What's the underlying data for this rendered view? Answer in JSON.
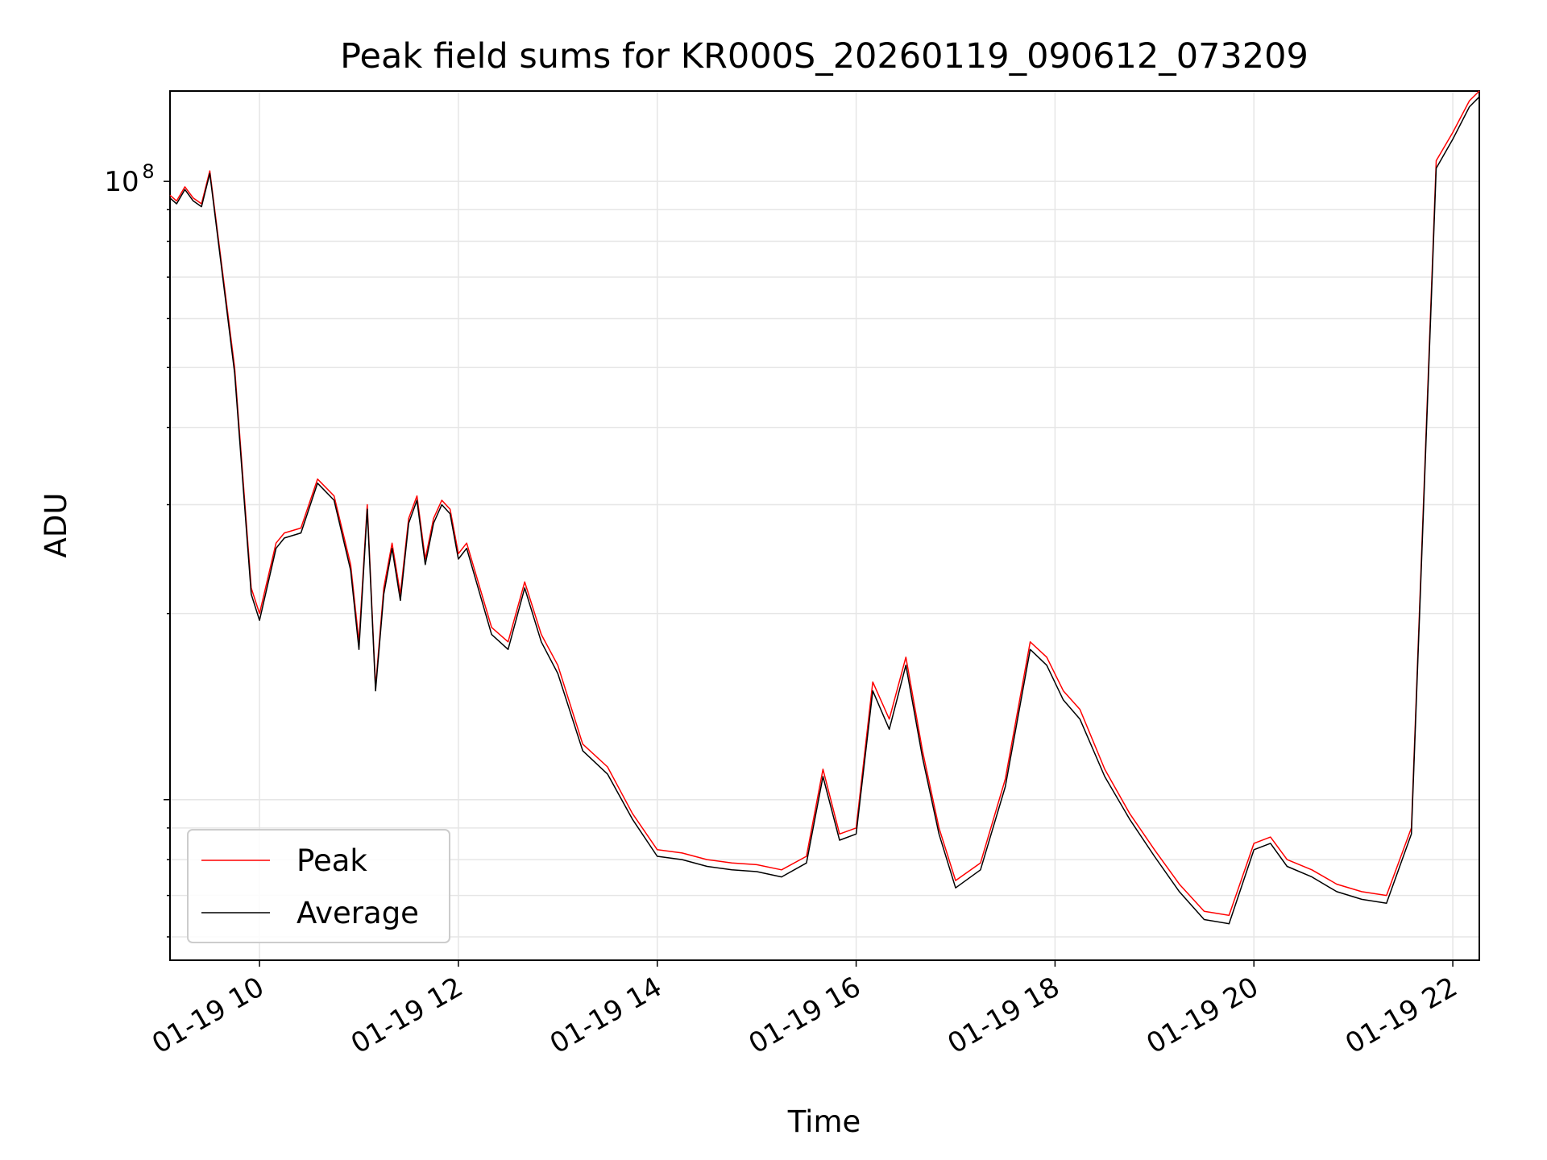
{
  "chart_data": {
    "type": "line",
    "title": "Peak field sums for KR000S_20260119_090612_073209",
    "xlabel": "Time",
    "ylabel": "ADU",
    "yscale": "log",
    "ylim": [
      5500000,
      140000000
    ],
    "x_tick_labels": [
      "01-19 10",
      "01-19 12",
      "01-19 14",
      "01-19 16",
      "01-19 18",
      "01-19 20",
      "01-19 22"
    ],
    "y_tick_labels": [
      {
        "base": "10",
        "exponent": "8"
      }
    ],
    "grid": true,
    "legend_position": "lower-left",
    "colors": {
      "Peak": "#ff0000",
      "Average": "#000000"
    },
    "x": [
      "2026-01-19 09:06",
      "2026-01-19 09:10",
      "2026-01-19 09:15",
      "2026-01-19 09:20",
      "2026-01-19 09:25",
      "2026-01-19 09:30",
      "2026-01-19 09:45",
      "2026-01-19 09:55",
      "2026-01-19 10:00",
      "2026-01-19 10:10",
      "2026-01-19 10:15",
      "2026-01-19 10:25",
      "2026-01-19 10:35",
      "2026-01-19 10:45",
      "2026-01-19 10:55",
      "2026-01-19 11:00",
      "2026-01-19 11:05",
      "2026-01-19 11:10",
      "2026-01-19 11:15",
      "2026-01-19 11:20",
      "2026-01-19 11:25",
      "2026-01-19 11:30",
      "2026-01-19 11:35",
      "2026-01-19 11:40",
      "2026-01-19 11:45",
      "2026-01-19 11:50",
      "2026-01-19 11:55",
      "2026-01-19 12:00",
      "2026-01-19 12:05",
      "2026-01-19 12:20",
      "2026-01-19 12:30",
      "2026-01-19 12:40",
      "2026-01-19 12:50",
      "2026-01-19 13:00",
      "2026-01-19 13:15",
      "2026-01-19 13:30",
      "2026-01-19 13:45",
      "2026-01-19 14:00",
      "2026-01-19 14:15",
      "2026-01-19 14:30",
      "2026-01-19 14:45",
      "2026-01-19 15:00",
      "2026-01-19 15:15",
      "2026-01-19 15:30",
      "2026-01-19 15:40",
      "2026-01-19 15:50",
      "2026-01-19 16:00",
      "2026-01-19 16:10",
      "2026-01-19 16:20",
      "2026-01-19 16:30",
      "2026-01-19 16:40",
      "2026-01-19 16:50",
      "2026-01-19 17:00",
      "2026-01-19 17:15",
      "2026-01-19 17:30",
      "2026-01-19 17:45",
      "2026-01-19 17:55",
      "2026-01-19 18:05",
      "2026-01-19 18:15",
      "2026-01-19 18:30",
      "2026-01-19 18:45",
      "2026-01-19 19:00",
      "2026-01-19 19:15",
      "2026-01-19 19:30",
      "2026-01-19 19:45",
      "2026-01-19 20:00",
      "2026-01-19 20:10",
      "2026-01-19 20:20",
      "2026-01-19 20:35",
      "2026-01-19 20:50",
      "2026-01-19 21:05",
      "2026-01-19 21:20",
      "2026-01-19 21:35",
      "2026-01-19 21:50",
      "2026-01-19 22:00",
      "2026-01-19 22:10",
      "2026-01-19 22:16"
    ],
    "series": [
      {
        "name": "Peak",
        "values": [
          95000000,
          93000000,
          98000000,
          94000000,
          92000000,
          104000000,
          50000000,
          22000000,
          20000000,
          26000000,
          27000000,
          27500000,
          33000000,
          31000000,
          24000000,
          18000000,
          30000000,
          15200000,
          22000000,
          26000000,
          21500000,
          28500000,
          31000000,
          24500000,
          28500000,
          30500000,
          29500000,
          25000000,
          26000000,
          19000000,
          18000000,
          22500000,
          18500000,
          16500000,
          12300000,
          11300000,
          9500000,
          8300000,
          8200000,
          8000000,
          7900000,
          7850000,
          7700000,
          8100000,
          11200000,
          8800000,
          9000000,
          15500000,
          13500000,
          17000000,
          12000000,
          9000000,
          7400000,
          7900000,
          10800000,
          18000000,
          17000000,
          15000000,
          14000000,
          11200000,
          9500000,
          8300000,
          7300000,
          6600000,
          6500000,
          8500000,
          8700000,
          8000000,
          7700000,
          7300000,
          7100000,
          7000000,
          9000000,
          108000000,
          120000000,
          135000000,
          140000000
        ]
      },
      {
        "name": "Average",
        "values": [
          94000000,
          92000000,
          97000000,
          93000000,
          91000000,
          103000000,
          49000000,
          21500000,
          19500000,
          25500000,
          26500000,
          27000000,
          32500000,
          30500000,
          23500000,
          17500000,
          29500000,
          15000000,
          21500000,
          25500000,
          21000000,
          28000000,
          30500000,
          24000000,
          28000000,
          30000000,
          29000000,
          24500000,
          25500000,
          18500000,
          17500000,
          22000000,
          18000000,
          16000000,
          12000000,
          11000000,
          9300000,
          8100000,
          8000000,
          7800000,
          7700000,
          7650000,
          7500000,
          7900000,
          10900000,
          8600000,
          8800000,
          15000000,
          13000000,
          16500000,
          11700000,
          8800000,
          7200000,
          7700000,
          10500000,
          17500000,
          16500000,
          14500000,
          13500000,
          10900000,
          9300000,
          8100000,
          7100000,
          6400000,
          6300000,
          8300000,
          8500000,
          7800000,
          7500000,
          7100000,
          6900000,
          6800000,
          8800000,
          105000000,
          117000000,
          132000000,
          137000000
        ]
      }
    ]
  }
}
